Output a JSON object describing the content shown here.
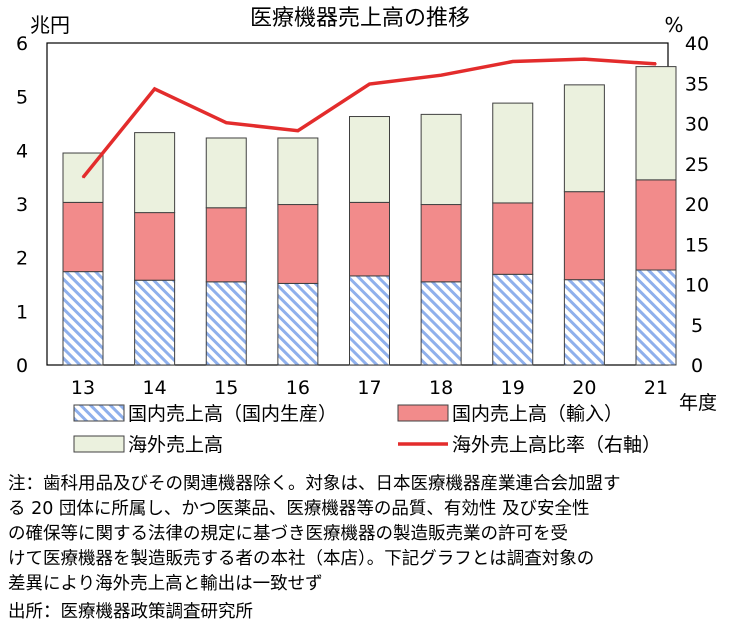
{
  "chart_data": {
    "type": "bar",
    "stacked": true,
    "title": "医療機器売上高の推移",
    "left_axis_unit": "兆円",
    "right_axis_unit": "%",
    "x_unit_label": "年度",
    "categories": [
      "13",
      "14",
      "15",
      "16",
      "17",
      "18",
      "19",
      "20",
      "21"
    ],
    "left_ylim": [
      0,
      6
    ],
    "left_yticks": [
      "0",
      "1",
      "2",
      "3",
      "4",
      "5",
      "6"
    ],
    "right_ylim": [
      0,
      40
    ],
    "right_yticks": [
      "0",
      "5",
      "10",
      "15",
      "20",
      "25",
      "30",
      "35",
      "40"
    ],
    "series": [
      {
        "name": "国内売上高（国内生産）",
        "kind": "bar",
        "axis": "left",
        "pattern": "hatch",
        "color": "#7FA6E8",
        "values": [
          1.74,
          1.58,
          1.55,
          1.52,
          1.66,
          1.55,
          1.69,
          1.59,
          1.77
        ]
      },
      {
        "name": "国内売上高（輸入）",
        "kind": "bar",
        "axis": "left",
        "color": "#F28B8B",
        "values": [
          1.29,
          1.26,
          1.38,
          1.47,
          1.37,
          1.44,
          1.33,
          1.64,
          1.68
        ]
      },
      {
        "name": "海外売上高",
        "kind": "bar",
        "axis": "left",
        "color": "#EBF1DE",
        "values": [
          0.92,
          1.49,
          1.3,
          1.24,
          1.6,
          1.68,
          1.86,
          1.99,
          2.11
        ]
      },
      {
        "name": "海外売上高比率（右軸）",
        "kind": "line",
        "axis": "right",
        "color": "#E32C2C",
        "values": [
          23.3,
          34.3,
          30.1,
          29.1,
          34.9,
          36.0,
          37.7,
          38.0,
          37.4
        ]
      }
    ],
    "grid": false,
    "legend_position": "bottom"
  },
  "notes": {
    "lines": [
      "注：歯科用品及びその関連機器除く。対象は、日本医療機器産業連合会加盟す",
      "る 20 団体に所属し、かつ医薬品、医療機器等の品質、有効性 及び安全性",
      "の確保等に関する法律の規定に基づき医療機器の製造販売業の許可を受",
      "けて医療機器を製造販売する者の本社（本店）。下記グラフとは調査対象の",
      "差異により海外売上高と輸出は一致せず"
    ],
    "source": "出所：医療機器政策調査研究所"
  }
}
